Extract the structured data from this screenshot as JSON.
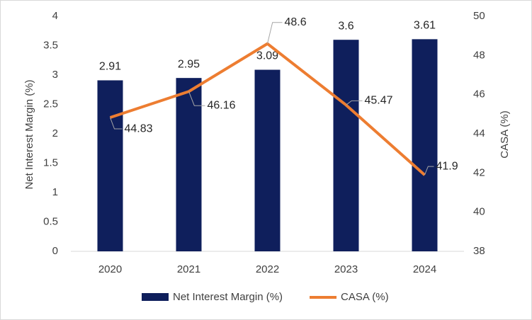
{
  "chart_data": {
    "type": "bar",
    "categories": [
      "2020",
      "2021",
      "2022",
      "2023",
      "2024"
    ],
    "y_label": "Net Interest Margin (%)",
    "y2_label": "CASA (%)",
    "ylim": [
      0,
      4
    ],
    "yticks": [
      0,
      0.5,
      1,
      1.5,
      2,
      2.5,
      3,
      3.5,
      4
    ],
    "y2lim": [
      38,
      50
    ],
    "y2ticks": [
      38,
      40,
      42,
      44,
      46,
      48,
      50
    ],
    "series": [
      {
        "name": "Net Interest Margin (%)",
        "type": "bar",
        "color": "#0f1f5c",
        "values": [
          2.91,
          2.95,
          3.09,
          3.6,
          3.61
        ]
      },
      {
        "name": "CASA (%)",
        "type": "line",
        "axis": "y2",
        "color": "#ed7d31",
        "values": [
          44.83,
          46.16,
          48.6,
          45.47,
          41.9
        ]
      }
    ],
    "legend": "bottom"
  }
}
